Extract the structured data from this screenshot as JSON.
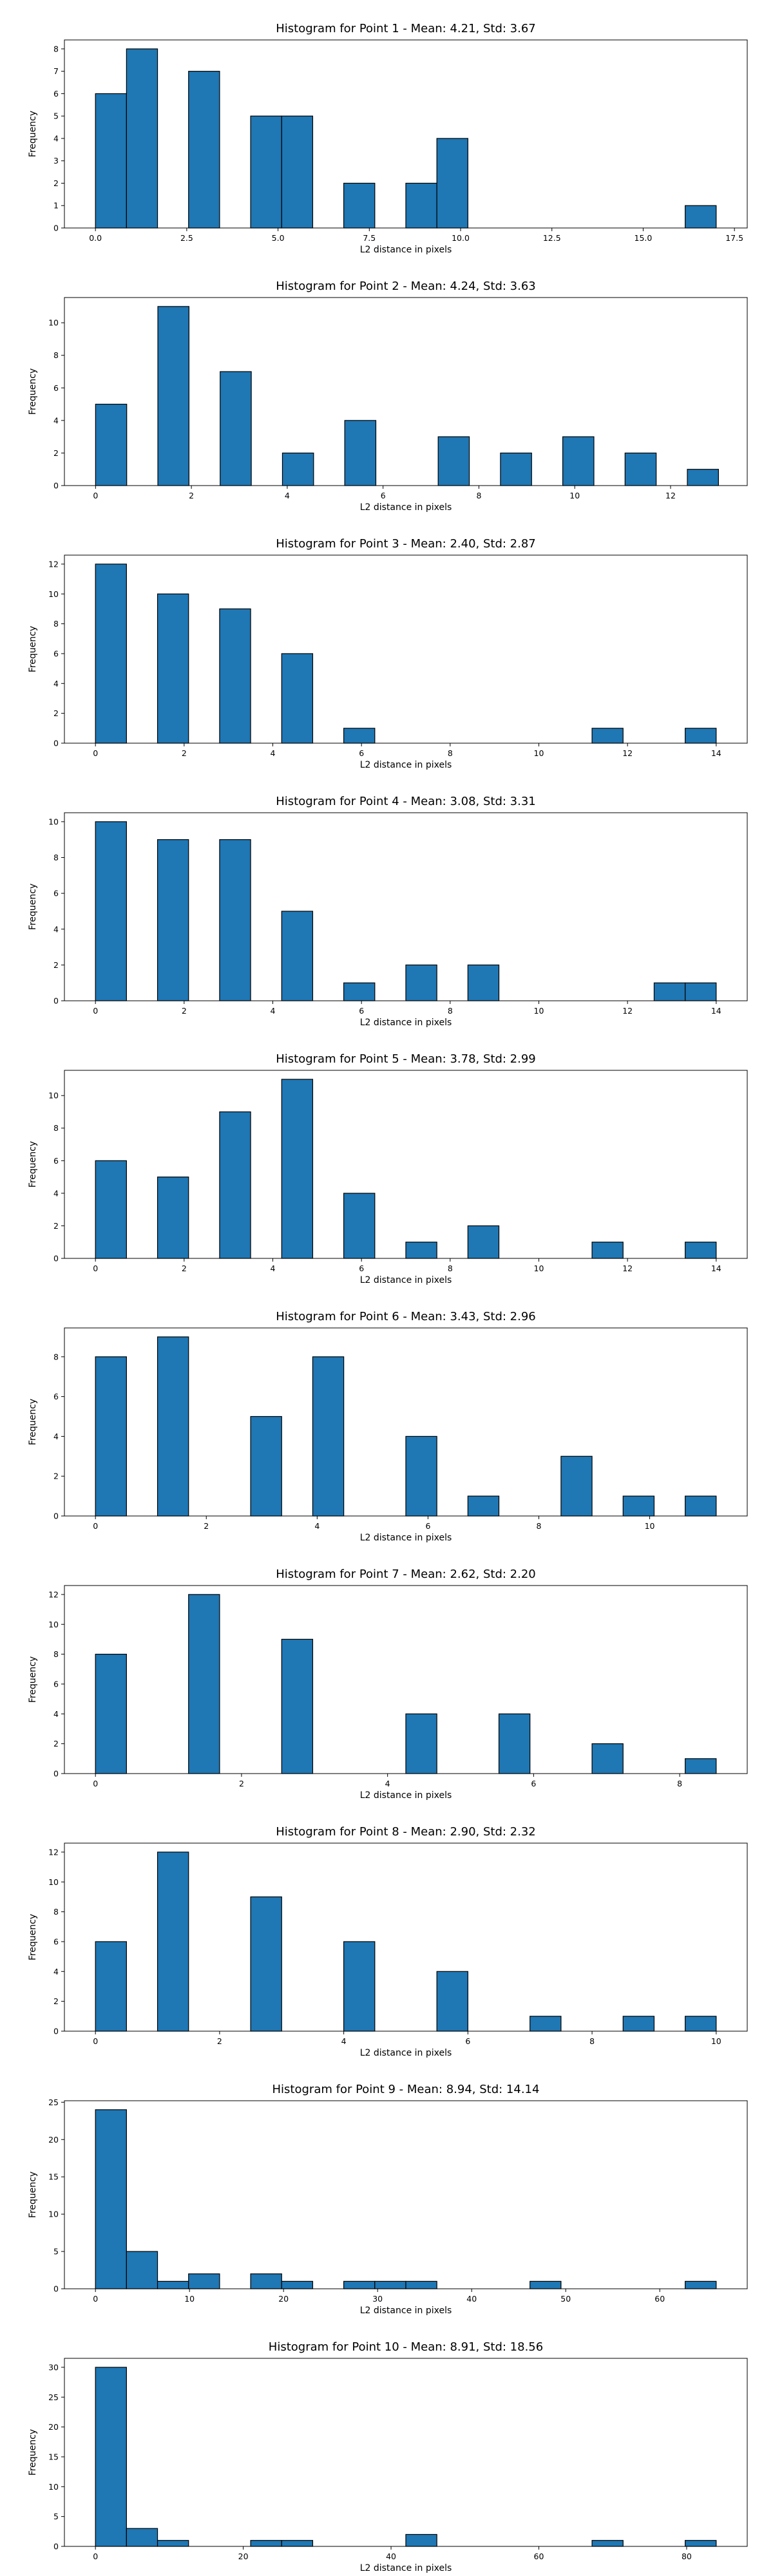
{
  "colors": {
    "bar": "#1f77b4",
    "edge": "#000000",
    "background": "#ffffff"
  },
  "chart_data": [
    {
      "type": "bar",
      "title": "Histogram for Point 1 - Mean: 4.21, Std: 3.67",
      "xlabel": "L2 distance in pixels",
      "ylabel": "Frequency",
      "xlim": [
        -0.85,
        17.85
      ],
      "ylim": [
        0,
        8.4
      ],
      "xticks": [
        0.0,
        2.5,
        5.0,
        7.5,
        10.0,
        12.5,
        15.0,
        17.5
      ],
      "xtick_labels": [
        "0.0",
        "2.5",
        "5.0",
        "7.5",
        "10.0",
        "12.5",
        "15.0",
        "17.5"
      ],
      "yticks": [
        0,
        1,
        2,
        3,
        4,
        5,
        6,
        7,
        8
      ],
      "ytick_labels": [
        "0",
        "1",
        "2",
        "3",
        "4",
        "5",
        "6",
        "7",
        "8"
      ],
      "bins": [
        {
          "x0": 0.0,
          "x1": 0.85,
          "count": 6
        },
        {
          "x0": 0.85,
          "x1": 1.7,
          "count": 8
        },
        {
          "x0": 2.55,
          "x1": 3.4,
          "count": 7
        },
        {
          "x0": 4.25,
          "x1": 5.1,
          "count": 5
        },
        {
          "x0": 5.1,
          "x1": 5.95,
          "count": 5
        },
        {
          "x0": 6.8,
          "x1": 7.65,
          "count": 2
        },
        {
          "x0": 8.5,
          "x1": 9.35,
          "count": 2
        },
        {
          "x0": 9.35,
          "x1": 10.2,
          "count": 4
        },
        {
          "x0": 16.15,
          "x1": 17.0,
          "count": 1
        }
      ]
    },
    {
      "type": "bar",
      "title": "Histogram for Point 2 - Mean: 4.24, Std: 3.63",
      "xlabel": "L2 distance in pixels",
      "ylabel": "Frequency",
      "xlim": [
        -0.65,
        13.6
      ],
      "ylim": [
        0,
        11.55
      ],
      "xticks": [
        0,
        2,
        4,
        6,
        8,
        10,
        12
      ],
      "xtick_labels": [
        "0",
        "2",
        "4",
        "6",
        "8",
        "10",
        "12"
      ],
      "yticks": [
        0,
        2,
        4,
        6,
        8,
        10
      ],
      "ytick_labels": [
        "0",
        "2",
        "4",
        "6",
        "8",
        "10"
      ],
      "bins": [
        {
          "x0": 0.0,
          "x1": 0.65,
          "count": 5
        },
        {
          "x0": 1.3,
          "x1": 1.95,
          "count": 11
        },
        {
          "x0": 2.6,
          "x1": 3.25,
          "count": 7
        },
        {
          "x0": 3.9,
          "x1": 4.55,
          "count": 2
        },
        {
          "x0": 5.2,
          "x1": 5.85,
          "count": 4
        },
        {
          "x0": 7.15,
          "x1": 7.8,
          "count": 3
        },
        {
          "x0": 8.45,
          "x1": 9.1,
          "count": 2
        },
        {
          "x0": 9.75,
          "x1": 10.4,
          "count": 3
        },
        {
          "x0": 11.05,
          "x1": 11.7,
          "count": 2
        },
        {
          "x0": 12.35,
          "x1": 13.0,
          "count": 1
        }
      ]
    },
    {
      "type": "bar",
      "title": "Histogram for Point 3 - Mean: 2.40, Std: 2.87",
      "xlabel": "L2 distance in pixels",
      "ylabel": "Frequency",
      "xlim": [
        -0.7,
        14.7
      ],
      "ylim": [
        0,
        12.6
      ],
      "xticks": [
        0,
        2,
        4,
        6,
        8,
        10,
        12,
        14
      ],
      "xtick_labels": [
        "0",
        "2",
        "4",
        "6",
        "8",
        "10",
        "12",
        "14"
      ],
      "yticks": [
        0,
        2,
        4,
        6,
        8,
        10,
        12
      ],
      "ytick_labels": [
        "0",
        "2",
        "4",
        "6",
        "8",
        "10",
        "12"
      ],
      "bins": [
        {
          "x0": 0.0,
          "x1": 0.7,
          "count": 12
        },
        {
          "x0": 1.4,
          "x1": 2.1,
          "count": 10
        },
        {
          "x0": 2.8,
          "x1": 3.5,
          "count": 9
        },
        {
          "x0": 4.2,
          "x1": 4.9,
          "count": 6
        },
        {
          "x0": 5.6,
          "x1": 6.3,
          "count": 1
        },
        {
          "x0": 11.2,
          "x1": 11.9,
          "count": 1
        },
        {
          "x0": 13.3,
          "x1": 14.0,
          "count": 1
        }
      ]
    },
    {
      "type": "bar",
      "title": "Histogram for Point 4 - Mean: 3.08, Std: 3.31",
      "xlabel": "L2 distance in pixels",
      "ylabel": "Frequency",
      "xlim": [
        -0.7,
        14.7
      ],
      "ylim": [
        0,
        10.5
      ],
      "xticks": [
        0,
        2,
        4,
        6,
        8,
        10,
        12,
        14
      ],
      "xtick_labels": [
        "0",
        "2",
        "4",
        "6",
        "8",
        "10",
        "12",
        "14"
      ],
      "yticks": [
        0,
        2,
        4,
        6,
        8,
        10
      ],
      "ytick_labels": [
        "0",
        "2",
        "4",
        "6",
        "8",
        "10"
      ],
      "bins": [
        {
          "x0": 0.0,
          "x1": 0.7,
          "count": 10
        },
        {
          "x0": 1.4,
          "x1": 2.1,
          "count": 9
        },
        {
          "x0": 2.8,
          "x1": 3.5,
          "count": 9
        },
        {
          "x0": 4.2,
          "x1": 4.9,
          "count": 5
        },
        {
          "x0": 5.6,
          "x1": 6.3,
          "count": 1
        },
        {
          "x0": 7.0,
          "x1": 7.7,
          "count": 2
        },
        {
          "x0": 8.4,
          "x1": 9.1,
          "count": 2
        },
        {
          "x0": 12.6,
          "x1": 13.3,
          "count": 1
        },
        {
          "x0": 13.3,
          "x1": 14.0,
          "count": 1
        }
      ]
    },
    {
      "type": "bar",
      "title": "Histogram for Point 5 - Mean: 3.78, Std: 2.99",
      "xlabel": "L2 distance in pixels",
      "ylabel": "Frequency",
      "xlim": [
        -0.7,
        14.7
      ],
      "ylim": [
        0,
        11.55
      ],
      "xticks": [
        0,
        2,
        4,
        6,
        8,
        10,
        12,
        14
      ],
      "xtick_labels": [
        "0",
        "2",
        "4",
        "6",
        "8",
        "10",
        "12",
        "14"
      ],
      "yticks": [
        0,
        2,
        4,
        6,
        8,
        10
      ],
      "ytick_labels": [
        "0",
        "2",
        "4",
        "6",
        "8",
        "10"
      ],
      "bins": [
        {
          "x0": 0.0,
          "x1": 0.7,
          "count": 6
        },
        {
          "x0": 1.4,
          "x1": 2.1,
          "count": 5
        },
        {
          "x0": 2.8,
          "x1": 3.5,
          "count": 9
        },
        {
          "x0": 4.2,
          "x1": 4.9,
          "count": 11
        },
        {
          "x0": 5.6,
          "x1": 6.3,
          "count": 4
        },
        {
          "x0": 7.0,
          "x1": 7.7,
          "count": 1
        },
        {
          "x0": 8.4,
          "x1": 9.1,
          "count": 2
        },
        {
          "x0": 11.2,
          "x1": 11.9,
          "count": 1
        },
        {
          "x0": 13.3,
          "x1": 14.0,
          "count": 1
        }
      ]
    },
    {
      "type": "bar",
      "title": "Histogram for Point 6 - Mean: 3.43, Std: 2.96",
      "xlabel": "L2 distance in pixels",
      "ylabel": "Frequency",
      "xlim": [
        -0.56,
        11.76
      ],
      "ylim": [
        0,
        9.45
      ],
      "xticks": [
        0,
        2,
        4,
        6,
        8,
        10
      ],
      "xtick_labels": [
        "0",
        "2",
        "4",
        "6",
        "8",
        "10"
      ],
      "yticks": [
        0,
        2,
        4,
        6,
        8
      ],
      "ytick_labels": [
        "0",
        "2",
        "4",
        "6",
        "8"
      ],
      "bins": [
        {
          "x0": 0.0,
          "x1": 0.56,
          "count": 8
        },
        {
          "x0": 1.12,
          "x1": 1.68,
          "count": 9
        },
        {
          "x0": 2.8,
          "x1": 3.36,
          "count": 5
        },
        {
          "x0": 3.92,
          "x1": 4.48,
          "count": 8
        },
        {
          "x0": 5.6,
          "x1": 6.16,
          "count": 4
        },
        {
          "x0": 6.72,
          "x1": 7.28,
          "count": 1
        },
        {
          "x0": 8.4,
          "x1": 8.96,
          "count": 3
        },
        {
          "x0": 9.52,
          "x1": 10.08,
          "count": 1
        },
        {
          "x0": 10.64,
          "x1": 11.2,
          "count": 1
        }
      ]
    },
    {
      "type": "bar",
      "title": "Histogram for Point 7 - Mean: 2.62, Std: 2.20",
      "xlabel": "L2 distance in pixels",
      "ylabel": "Frequency",
      "xlim": [
        -0.425,
        8.925
      ],
      "ylim": [
        0,
        12.6
      ],
      "xticks": [
        0,
        2,
        4,
        6,
        8
      ],
      "xtick_labels": [
        "0",
        "2",
        "4",
        "6",
        "8"
      ],
      "yticks": [
        0,
        2,
        4,
        6,
        8,
        10,
        12
      ],
      "ytick_labels": [
        "0",
        "2",
        "4",
        "6",
        "8",
        "10",
        "12"
      ],
      "bins": [
        {
          "x0": 0.0,
          "x1": 0.425,
          "count": 8
        },
        {
          "x0": 1.275,
          "x1": 1.7,
          "count": 12
        },
        {
          "x0": 2.55,
          "x1": 2.975,
          "count": 9
        },
        {
          "x0": 4.25,
          "x1": 4.675,
          "count": 4
        },
        {
          "x0": 5.525,
          "x1": 5.95,
          "count": 4
        },
        {
          "x0": 6.8,
          "x1": 7.225,
          "count": 2
        },
        {
          "x0": 8.075,
          "x1": 8.5,
          "count": 1
        }
      ]
    },
    {
      "type": "bar",
      "title": "Histogram for Point 8 - Mean: 2.90, Std: 2.32",
      "xlabel": "L2 distance in pixels",
      "ylabel": "Frequency",
      "xlim": [
        -0.5,
        10.5
      ],
      "ylim": [
        0,
        12.6
      ],
      "xticks": [
        0,
        2,
        4,
        6,
        8,
        10
      ],
      "xtick_labels": [
        "0",
        "2",
        "4",
        "6",
        "8",
        "10"
      ],
      "yticks": [
        0,
        2,
        4,
        6,
        8,
        10,
        12
      ],
      "ytick_labels": [
        "0",
        "2",
        "4",
        "6",
        "8",
        "10",
        "12"
      ],
      "bins": [
        {
          "x0": 0.0,
          "x1": 0.5,
          "count": 6
        },
        {
          "x0": 1.0,
          "x1": 1.5,
          "count": 12
        },
        {
          "x0": 2.5,
          "x1": 3.0,
          "count": 9
        },
        {
          "x0": 4.0,
          "x1": 4.5,
          "count": 6
        },
        {
          "x0": 5.5,
          "x1": 6.0,
          "count": 4
        },
        {
          "x0": 7.0,
          "x1": 7.5,
          "count": 1
        },
        {
          "x0": 8.5,
          "x1": 9.0,
          "count": 1
        },
        {
          "x0": 9.5,
          "x1": 10.0,
          "count": 1
        }
      ]
    },
    {
      "type": "bar",
      "title": "Histogram for Point 9 - Mean: 8.94, Std: 14.14",
      "xlabel": "L2 distance in pixels",
      "ylabel": "Frequency",
      "xlim": [
        -3.3,
        69.3
      ],
      "ylim": [
        0,
        25.2
      ],
      "xticks": [
        0,
        10,
        20,
        30,
        40,
        50,
        60
      ],
      "xtick_labels": [
        "0",
        "10",
        "20",
        "30",
        "40",
        "50",
        "60"
      ],
      "yticks": [
        0,
        5,
        10,
        15,
        20,
        25
      ],
      "ytick_labels": [
        "0",
        "5",
        "10",
        "15",
        "20",
        "25"
      ],
      "bins": [
        {
          "x0": 0.0,
          "x1": 3.3,
          "count": 24
        },
        {
          "x0": 3.3,
          "x1": 6.6,
          "count": 5
        },
        {
          "x0": 6.6,
          "x1": 9.9,
          "count": 1
        },
        {
          "x0": 9.9,
          "x1": 13.2,
          "count": 2
        },
        {
          "x0": 16.5,
          "x1": 19.8,
          "count": 2
        },
        {
          "x0": 19.8,
          "x1": 23.1,
          "count": 1
        },
        {
          "x0": 26.4,
          "x1": 29.7,
          "count": 1
        },
        {
          "x0": 29.7,
          "x1": 33.0,
          "count": 1
        },
        {
          "x0": 33.0,
          "x1": 36.3,
          "count": 1
        },
        {
          "x0": 46.2,
          "x1": 49.5,
          "count": 1
        },
        {
          "x0": 62.7,
          "x1": 66.0,
          "count": 1
        }
      ]
    },
    {
      "type": "bar",
      "title": "Histogram for Point 10 - Mean: 8.91, Std: 18.56",
      "xlabel": "L2 distance in pixels",
      "ylabel": "Frequency",
      "xlim": [
        -4.2,
        88.2
      ],
      "ylim": [
        0,
        31.5
      ],
      "xticks": [
        0,
        20,
        40,
        60,
        80
      ],
      "xtick_labels": [
        "0",
        "20",
        "40",
        "60",
        "80"
      ],
      "yticks": [
        0,
        5,
        10,
        15,
        20,
        25,
        30
      ],
      "ytick_labels": [
        "0",
        "5",
        "10",
        "15",
        "20",
        "25",
        "30"
      ],
      "bins": [
        {
          "x0": 0.0,
          "x1": 4.2,
          "count": 30
        },
        {
          "x0": 4.2,
          "x1": 8.4,
          "count": 3
        },
        {
          "x0": 8.4,
          "x1": 12.6,
          "count": 1
        },
        {
          "x0": 21.0,
          "x1": 25.2,
          "count": 1
        },
        {
          "x0": 25.2,
          "x1": 29.4,
          "count": 1
        },
        {
          "x0": 42.0,
          "x1": 46.2,
          "count": 2
        },
        {
          "x0": 67.2,
          "x1": 71.4,
          "count": 1
        },
        {
          "x0": 79.8,
          "x1": 84.0,
          "count": 1
        }
      ]
    }
  ]
}
